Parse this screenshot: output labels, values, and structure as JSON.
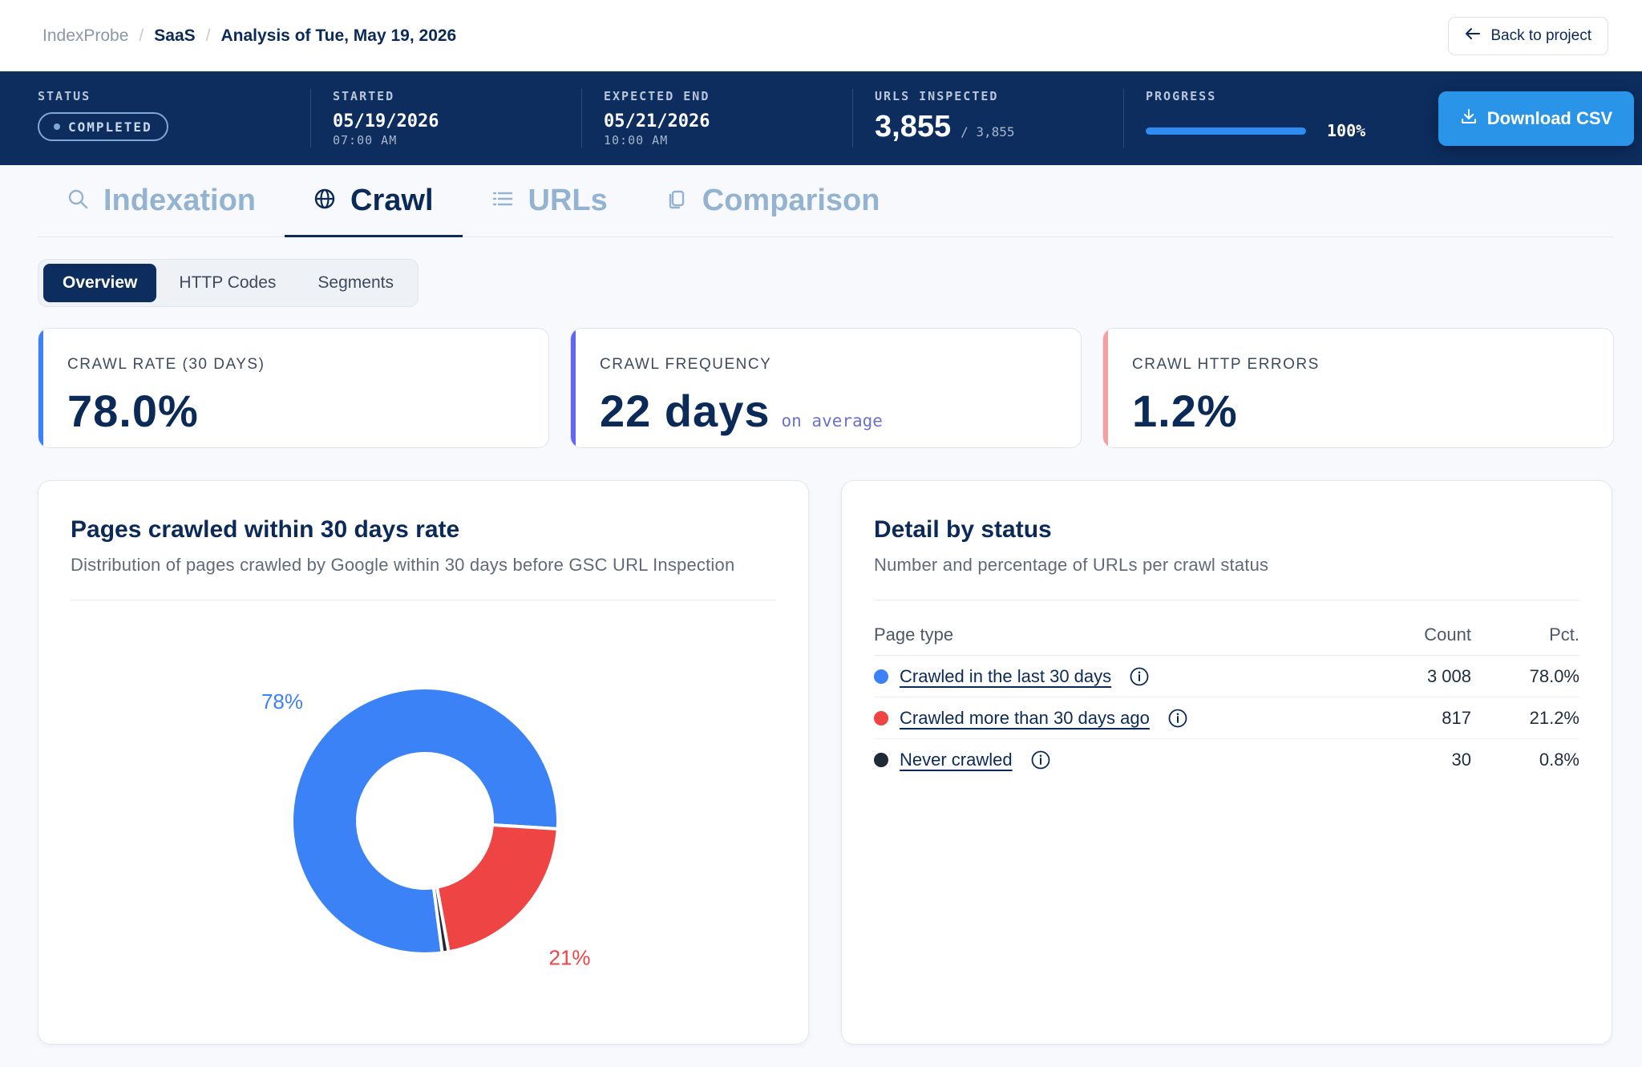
{
  "breadcrumb": {
    "app": "IndexProbe",
    "sep": "/",
    "project": "SaaS",
    "analysis": "Analysis of Tue, May 19, 2026"
  },
  "back_button": {
    "label": "Back to project",
    "icon": "arrow-left-icon"
  },
  "banner": {
    "status": {
      "label": "STATUS",
      "value": "COMPLETED"
    },
    "started": {
      "label": "STARTED",
      "date": "05/19/2026",
      "time": "07:00 AM"
    },
    "expected_end": {
      "label": "EXPECTED END",
      "date": "05/21/2026",
      "time": "10:00 AM"
    },
    "urls_inspected": {
      "label": "URLS INSPECTED",
      "value": "3,855",
      "total": "/ 3,855"
    },
    "progress": {
      "label": "PROGRESS",
      "value": 100,
      "text": "100%"
    },
    "download": {
      "label": "Download CSV",
      "icon": "download-icon"
    }
  },
  "tabs": [
    {
      "label": "Indexation",
      "icon": "search-icon",
      "active": false
    },
    {
      "label": "Crawl",
      "icon": "globe-icon",
      "active": true
    },
    {
      "label": "URLs",
      "icon": "list-icon",
      "active": false
    },
    {
      "label": "Comparison",
      "icon": "copy-icon",
      "active": false
    }
  ],
  "subtabs": [
    {
      "label": "Overview",
      "active": true
    },
    {
      "label": "HTTP Codes",
      "active": false
    },
    {
      "label": "Segments",
      "active": false
    }
  ],
  "kpis": [
    {
      "label": "CRAWL RATE (30 DAYS)",
      "value": "78.0%",
      "suffix": "",
      "accent": "#3b82f6"
    },
    {
      "label": "CRAWL FREQUENCY",
      "value": "22 days",
      "suffix": "on average",
      "accent": "#6366f1"
    },
    {
      "label": "CRAWL HTTP ERRORS",
      "value": "1.2%",
      "suffix": "",
      "accent": "#f4a0a0"
    }
  ],
  "chart_panel": {
    "title": "Pages crawled within 30 days rate",
    "subtitle": "Distribution of pages crawled by Google within 30 days before GSC URL Inspection"
  },
  "chart_data": {
    "type": "pie",
    "donut": true,
    "categories": [
      "Crawled in the last 30 days",
      "Crawled more than 30 days ago",
      "Never crawled"
    ],
    "values": [
      3008,
      817,
      30
    ],
    "colors": [
      "#3b82f6",
      "#ef4444",
      "#1f2937"
    ],
    "data_labels": [
      "78%",
      "21%",
      ""
    ]
  },
  "status_panel": {
    "title": "Detail by status",
    "subtitle": "Number and percentage of URLs per crawl status",
    "columns": [
      "Page type",
      "Count",
      "Pct."
    ],
    "rows": [
      {
        "label": "Crawled in the last 30 days",
        "count": "3 008",
        "pct": "78.0%",
        "color": "#3b82f6"
      },
      {
        "label": "Crawled more than 30 days ago",
        "count": "817",
        "pct": "21.2%",
        "color": "#ef4444"
      },
      {
        "label": "Never crawled",
        "count": "30",
        "pct": "0.8%",
        "color": "#1f2937"
      }
    ]
  }
}
